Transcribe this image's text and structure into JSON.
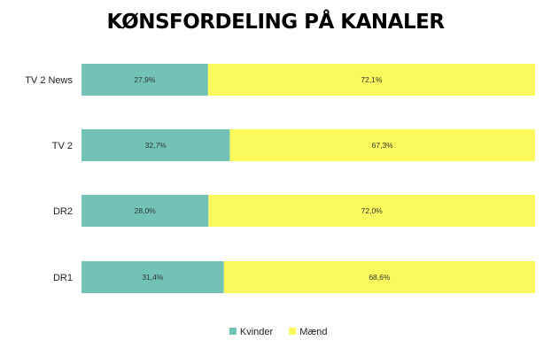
{
  "chart_data": {
    "type": "bar",
    "orientation": "horizontal",
    "stacked": true,
    "percent_stacked": true,
    "title": "KØNSFORDELING PÅ KANALER",
    "categories": [
      "TV 2 News",
      "TV 2",
      "DR2",
      "DR1"
    ],
    "series": [
      {
        "name": "Kvinder",
        "color": "#72c3b5",
        "values": [
          27.9,
          32.7,
          28.0,
          31.4
        ],
        "labels": [
          "27,9%",
          "32,7%",
          "28,0%",
          "31,4%"
        ]
      },
      {
        "name": "Mænd",
        "color": "#fbf95b",
        "values": [
          72.1,
          67.3,
          72.0,
          68.6
        ],
        "labels": [
          "72,1%",
          "67,3%",
          "72,0%",
          "68,6%"
        ]
      }
    ],
    "xlim": [
      0,
      100
    ],
    "grid": false,
    "legend_position": "bottom"
  }
}
